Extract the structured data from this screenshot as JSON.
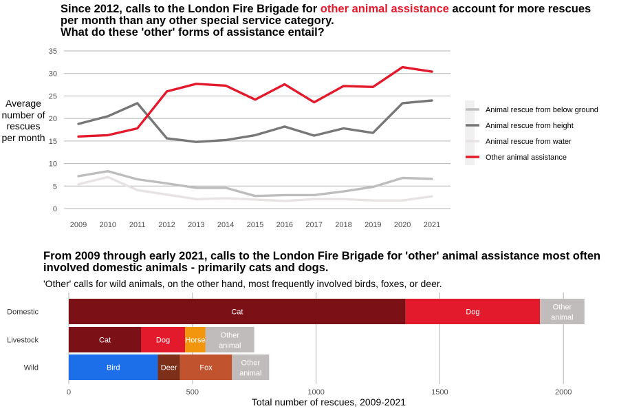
{
  "top_chart": {
    "title_part1": "Since 2012, calls to the London Fire Brigade for ",
    "title_highlight": "other animal assistance",
    "title_part2": " account for more rescues per month than any other special service category.",
    "title_line3": "What do these 'other' forms of assistance entail?",
    "ylabel": "Average number of rescues per month"
  },
  "bottom_chart": {
    "title": "From 2009 through early 2021, calls to the London Fire Brigade for 'other' animal assistance most often involved domestic animals -  primarily cats and dogs.",
    "subtitle": "'Other' calls for wild animals, on the other hand, most frequently involved birds, foxes, or deer.",
    "xlabel": "Total number of rescues, 2009-2021"
  },
  "chart_data": [
    {
      "type": "line",
      "x": [
        2009,
        2010,
        2011,
        2012,
        2013,
        2014,
        2015,
        2016,
        2017,
        2018,
        2019,
        2020,
        2021
      ],
      "xlim": [
        2009,
        2021
      ],
      "ylim": [
        0,
        35
      ],
      "yticks": [
        0,
        5,
        10,
        15,
        20,
        25,
        30,
        35
      ],
      "grid": "horizontal",
      "legend_position": "right",
      "series": [
        {
          "name": "Animal rescue from below ground",
          "color": "#bdbdbd",
          "values": [
            7.2,
            8.3,
            6.5,
            5.6,
            4.6,
            4.6,
            2.8,
            3.0,
            3.0,
            3.8,
            4.8,
            6.8,
            6.6
          ]
        },
        {
          "name": "Animal rescue from height",
          "color": "#777777",
          "values": [
            18.8,
            20.5,
            23.4,
            15.6,
            14.8,
            15.2,
            16.3,
            18.2,
            16.2,
            17.8,
            16.8,
            23.4,
            24.0
          ]
        },
        {
          "name": "Animal rescue from water",
          "color": "#e8e3e3",
          "values": [
            5.4,
            7.0,
            4.1,
            3.1,
            2.1,
            2.3,
            2.0,
            1.7,
            2.1,
            2.1,
            1.8,
            1.8,
            2.7
          ]
        },
        {
          "name": "Other animal assistance",
          "color": "#e31a2c",
          "values": [
            16.0,
            16.3,
            17.8,
            26.0,
            27.7,
            27.3,
            24.2,
            27.6,
            23.6,
            27.2,
            27.0,
            31.4,
            30.4
          ]
        }
      ]
    },
    {
      "type": "bar",
      "orientation": "horizontal",
      "stacked": true,
      "categories": [
        "Domestic",
        "Livestock",
        "Wild"
      ],
      "xlim": [
        0,
        2100
      ],
      "xticks": [
        0,
        500,
        1000,
        1500,
        2000
      ],
      "xlabel": "Total number of rescues, 2009-2021",
      "segments": [
        [
          {
            "label": "Cat",
            "value": 1362,
            "color": "#7b1017"
          },
          {
            "label": "Dog",
            "value": 543,
            "color": "#e31a2c"
          },
          {
            "label": "Other animal",
            "value": 180,
            "color": "#bfbcbb"
          }
        ],
        [
          {
            "label": "Cat",
            "value": 292,
            "color": "#7b1017"
          },
          {
            "label": "Dog",
            "value": 178,
            "color": "#e31a2c"
          },
          {
            "label": "Horse",
            "value": 83,
            "color": "#f2960e"
          },
          {
            "label": "Other animal",
            "value": 197,
            "color": "#bfbcbb"
          }
        ],
        [
          {
            "label": "Bird",
            "value": 360,
            "color": "#1c6fe8"
          },
          {
            "label": "Deer",
            "value": 90,
            "color": "#7d2f19"
          },
          {
            "label": "Fox",
            "value": 210,
            "color": "#c1532e"
          },
          {
            "label": "Other animal",
            "value": 150,
            "color": "#bfbcbb"
          }
        ]
      ]
    }
  ]
}
